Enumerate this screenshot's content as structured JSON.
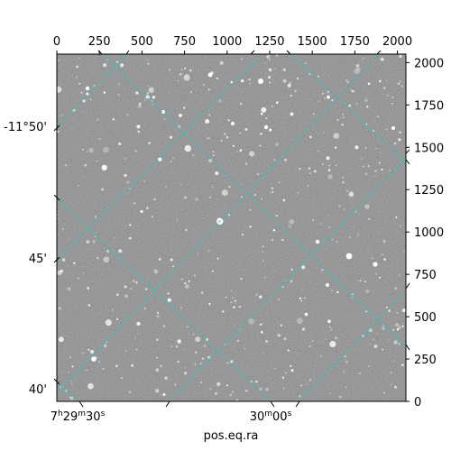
{
  "chart_data": {
    "type": "image",
    "xlabel": "pos.eq.ra",
    "pixel_axes": {
      "x": {
        "range": [
          0,
          2050
        ],
        "ticks": [
          0,
          250,
          500,
          750,
          1000,
          1250,
          1500,
          1750,
          2000
        ],
        "tick_labels": [
          "0",
          "250",
          "500",
          "750",
          "1000",
          "1250",
          "1500",
          "1750",
          "2000"
        ]
      },
      "y": {
        "range": [
          0,
          2050
        ],
        "ticks": [
          0,
          250,
          500,
          750,
          1000,
          1250,
          1500,
          1750,
          2000
        ],
        "tick_labels": [
          "0",
          "250",
          "500",
          "750",
          "1000",
          "1250",
          "1500",
          "1750",
          "2000"
        ]
      }
    },
    "ra_labels": [
      {
        "h": "7",
        "m": "29",
        "s": "30",
        "text": "7h29m30s"
      },
      {
        "h": "",
        "m": "30",
        "s": "00",
        "text": "30m00s"
      }
    ],
    "dec_labels": [
      "-11°50'",
      "45'",
      "40'"
    ],
    "grid_color": "#2ec4c4",
    "image_colormap": "gray",
    "background_level": "#6e6e6e"
  }
}
